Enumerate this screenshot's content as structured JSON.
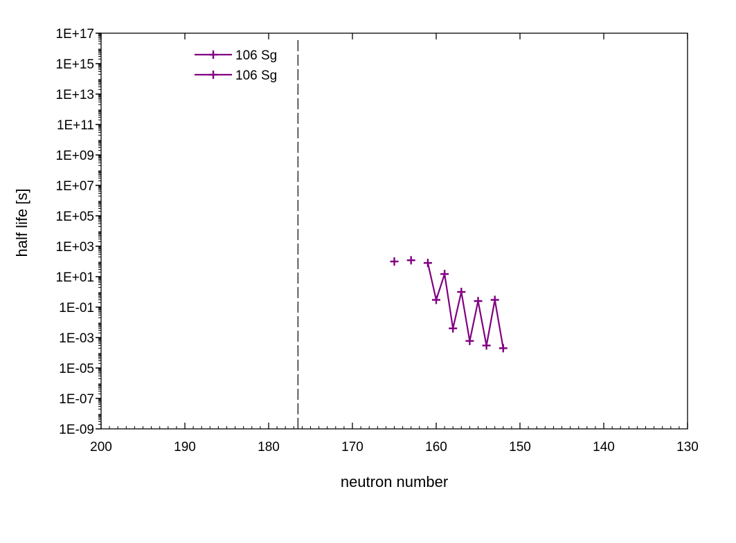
{
  "chart_data": {
    "type": "line",
    "title": "",
    "xlabel": "neutron number",
    "ylabel": "half life [s]",
    "x_reversed": true,
    "xlim": [
      200,
      130
    ],
    "x_ticks": [
      200,
      190,
      180,
      170,
      160,
      150,
      140,
      130
    ],
    "x_tick_labels": [
      "200",
      "190",
      "180",
      "170",
      "160",
      "150",
      "140",
      "130"
    ],
    "y_scale": "log",
    "ylim": [
      1e-09,
      1e+17
    ],
    "y_ticks": [
      1e-09,
      1e-07,
      1e-05,
      0.001,
      0.1,
      10.0,
      1000.0,
      100000.0,
      10000000.0,
      1000000000.0,
      100000000000.0,
      10000000000000.0,
      1000000000000000.0,
      1e+17
    ],
    "y_tick_labels": [
      "1E-09",
      "1E-07",
      "1E-05",
      "1E-03",
      "1E-01",
      "1E+01",
      "1E+03",
      "1E+05",
      "1E+07",
      "1E+09",
      "1E+11",
      "1E+13",
      "1E+15",
      "1E+17"
    ],
    "grid": false,
    "legend_position": "top-left",
    "reference_line": {
      "style": "dashed",
      "x": 176.5
    },
    "series": [
      {
        "name": "106 Sg",
        "color": "#800080",
        "marker": "plus",
        "connected": false,
        "x": [
          165,
          163
        ],
        "y": [
          100,
          120
        ]
      },
      {
        "name": "106 Sg",
        "color": "#800080",
        "marker": "plus",
        "connected": true,
        "x": [
          161,
          160,
          159,
          158,
          157,
          156,
          155,
          154,
          153,
          152
        ],
        "y": [
          80,
          0.3,
          15,
          0.004,
          1,
          0.0006,
          0.25,
          0.0003,
          0.3,
          0.0002
        ]
      }
    ]
  }
}
